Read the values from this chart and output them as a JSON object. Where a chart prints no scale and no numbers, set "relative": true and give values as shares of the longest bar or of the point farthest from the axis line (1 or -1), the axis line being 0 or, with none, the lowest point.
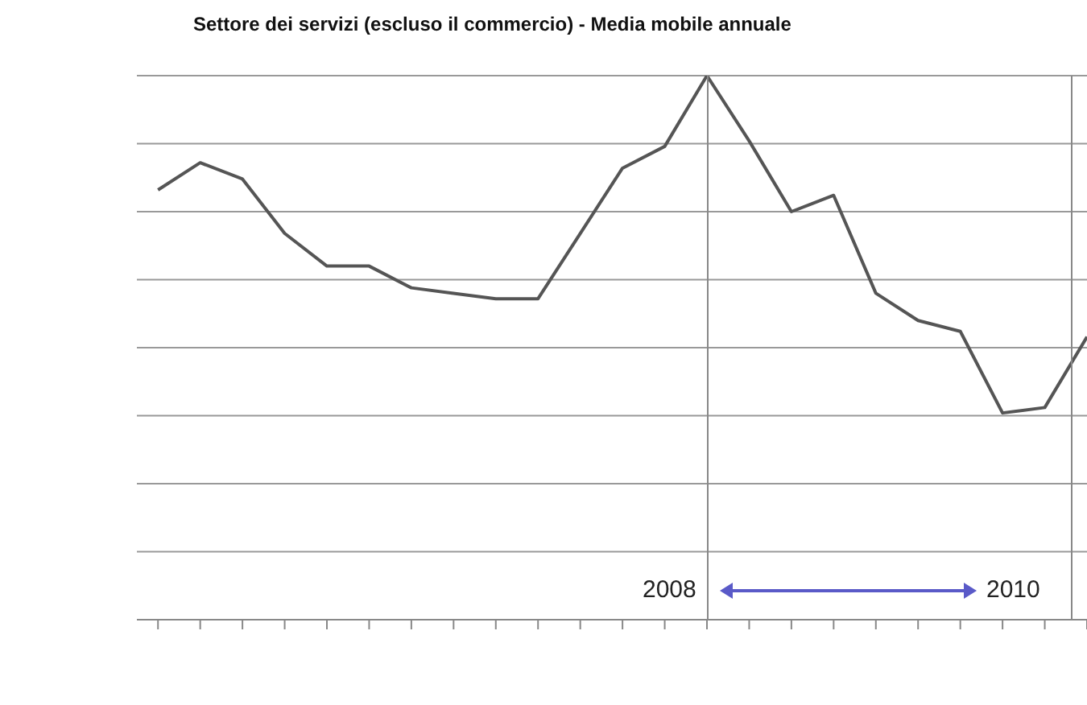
{
  "chart_data": {
    "type": "line",
    "title": "Settore dei servizi (escluso il commercio) - Media mobile annuale",
    "relative": true,
    "categories": [
      null,
      null,
      null,
      null,
      null,
      null,
      null,
      null,
      null,
      null,
      null,
      null,
      null,
      null,
      null,
      null,
      null,
      null,
      null,
      null,
      null,
      null,
      null
    ],
    "series": [
      {
        "color": "#555555",
        "values": [
          0.79,
          0.84,
          0.81,
          0.71,
          0.65,
          0.65,
          0.61,
          0.6,
          0.59,
          0.59,
          0.71,
          0.83,
          0.87,
          1.0,
          0.88,
          0.75,
          0.78,
          0.6,
          0.55,
          0.53,
          0.38,
          0.39,
          0.52
        ]
      }
    ],
    "grid": "y",
    "marker": "none",
    "line_style": "solid",
    "annotations": [
      "2008",
      "2010"
    ]
  }
}
